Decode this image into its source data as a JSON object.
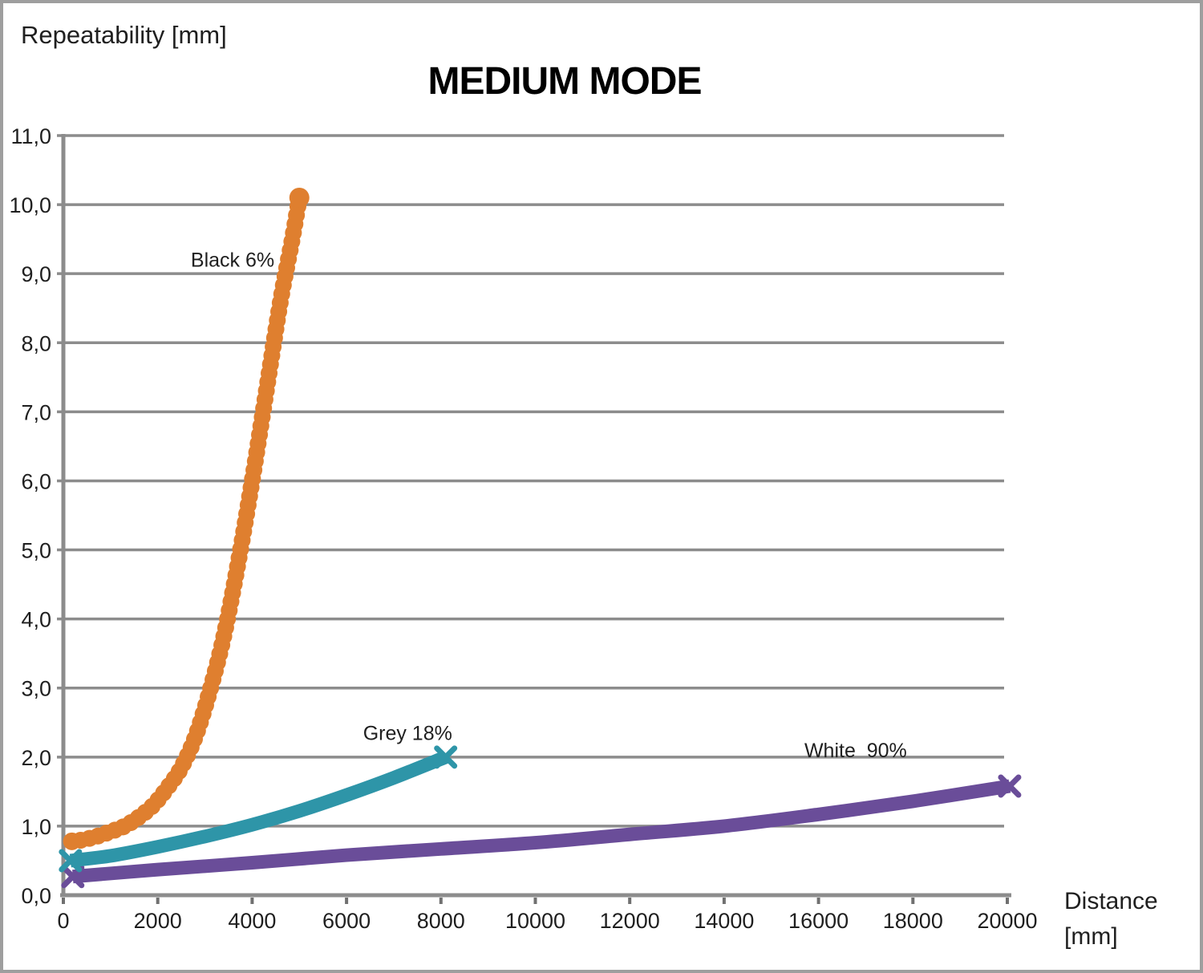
{
  "page": {
    "ylabel": "Repeatability [mm]",
    "title": "MEDIUM MODE",
    "xlabel_line1": "Distance",
    "xlabel_line2": "[mm]"
  },
  "colors": {
    "background": "#FFFFFF",
    "frame_border": "#9E9E9E",
    "grid": "#8C8C8C",
    "axis": "#8C8C8C",
    "tick": "#707070",
    "text": "#1F1F1F",
    "series_black6": "#DF7F2F",
    "series_grey18": "#2E95A8",
    "series_white90": "#6A4D99"
  },
  "chart_data": {
    "type": "line",
    "title": "MEDIUM MODE",
    "xlabel": "Distance [mm]",
    "ylabel": "Repeatability [mm]",
    "xlim": [
      0,
      20000
    ],
    "ylim": [
      0.0,
      11.0
    ],
    "x_ticks": [
      0,
      2000,
      4000,
      6000,
      8000,
      10000,
      12000,
      14000,
      16000,
      18000,
      20000
    ],
    "x_tick_labels": [
      "0",
      "2000",
      "4000",
      "6000",
      "8000",
      "10000",
      "12000",
      "14000",
      "16000",
      "18000",
      "20000"
    ],
    "y_ticks": [
      0,
      1,
      2,
      3,
      4,
      5,
      6,
      7,
      8,
      9,
      10,
      11
    ],
    "y_tick_labels": [
      "0,0",
      "1,0",
      "2,0",
      "3,0",
      "4,0",
      "5,0",
      "6,0",
      "7,0",
      "8,0",
      "9,0",
      "10,0",
      "11,0"
    ],
    "grid": "horizontal-only",
    "legend": "inline-text-labels",
    "series": [
      {
        "name": "White 90%",
        "color": "#6A4D99",
        "marker": "x",
        "points": [
          [
            200,
            0.27
          ],
          [
            2000,
            0.37
          ],
          [
            4000,
            0.47
          ],
          [
            6000,
            0.58
          ],
          [
            8000,
            0.67
          ],
          [
            10000,
            0.76
          ],
          [
            12000,
            0.88
          ],
          [
            14000,
            1.0
          ],
          [
            16000,
            1.17
          ],
          [
            18000,
            1.36
          ],
          [
            20050,
            1.58
          ]
        ]
      },
      {
        "name": "Grey 18%",
        "color": "#2E95A8",
        "marker": "x",
        "points": [
          [
            150,
            0.5
          ],
          [
            1000,
            0.57
          ],
          [
            2000,
            0.7
          ],
          [
            3000,
            0.85
          ],
          [
            4000,
            1.02
          ],
          [
            5000,
            1.22
          ],
          [
            6000,
            1.45
          ],
          [
            7000,
            1.7
          ],
          [
            8100,
            2.0
          ]
        ]
      },
      {
        "name": "Black 6%",
        "color": "#DF7F2F",
        "marker": "circle-chain",
        "points": [
          [
            180,
            0.78
          ],
          [
            400,
            0.8
          ],
          [
            700,
            0.85
          ],
          [
            1000,
            0.92
          ],
          [
            1300,
            1.0
          ],
          [
            1600,
            1.13
          ],
          [
            1900,
            1.3
          ],
          [
            2200,
            1.55
          ],
          [
            2500,
            1.85
          ],
          [
            2800,
            2.3
          ],
          [
            3100,
            2.95
          ],
          [
            3400,
            3.75
          ],
          [
            3700,
            4.8
          ],
          [
            4000,
            6.0
          ],
          [
            4300,
            7.3
          ],
          [
            4600,
            8.6
          ],
          [
            4850,
            9.5
          ],
          [
            5000,
            10.1
          ]
        ]
      }
    ],
    "annotations": [
      {
        "text": "Black 6%",
        "x": 2700,
        "y": 9.1
      },
      {
        "text": "Grey 18%",
        "x": 6350,
        "y": 2.25
      },
      {
        "text": "White  90%",
        "x": 15700,
        "y": 2.0
      }
    ]
  }
}
